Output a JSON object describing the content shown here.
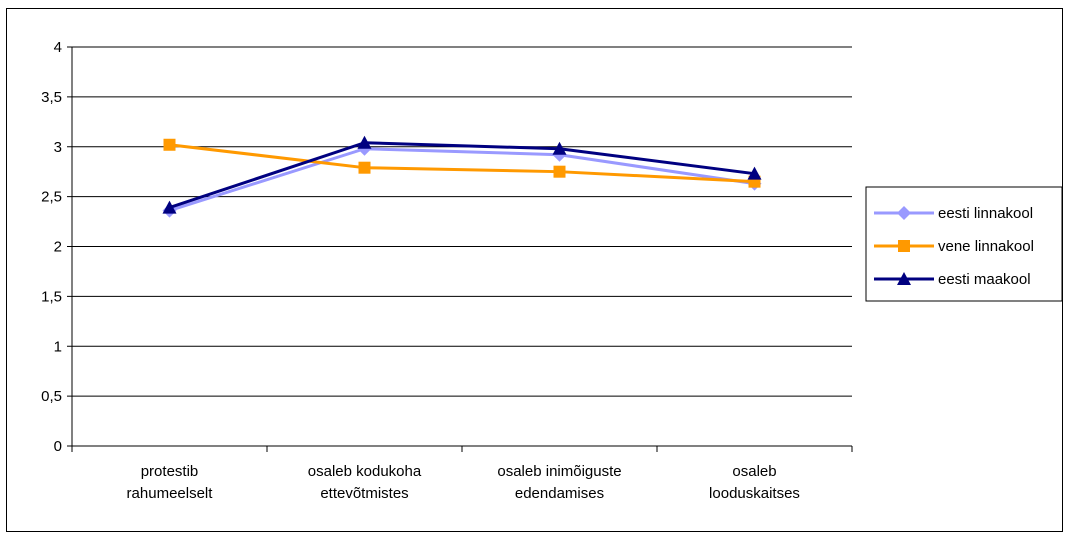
{
  "chart_data": {
    "type": "line",
    "title": "",
    "xlabel": "",
    "ylabel": "",
    "categories": [
      [
        "protestib",
        "rahumeelselt"
      ],
      [
        "osaleb kodukoha",
        "ettevõtmistes"
      ],
      [
        "osaleb inimõiguste",
        "edendamises"
      ],
      [
        "osaleb",
        "looduskaitses"
      ]
    ],
    "y_ticks": [
      "0",
      "0,5",
      "1",
      "1,5",
      "2",
      "2,5",
      "3",
      "3,5",
      "4"
    ],
    "ylim": [
      0,
      4
    ],
    "grid": true,
    "legend_position": "right",
    "series": [
      {
        "name": "eesti linnakool",
        "color": "#9999ff",
        "marker": "diamond",
        "values": [
          2.36,
          2.98,
          2.92,
          2.63
        ]
      },
      {
        "name": "vene linnakool",
        "color": "#ff9900",
        "marker": "square",
        "values": [
          3.02,
          2.79,
          2.75,
          2.65
        ]
      },
      {
        "name": "eesti maakool",
        "color": "#000080",
        "marker": "triangle",
        "values": [
          2.39,
          3.04,
          2.98,
          2.73
        ]
      }
    ]
  }
}
